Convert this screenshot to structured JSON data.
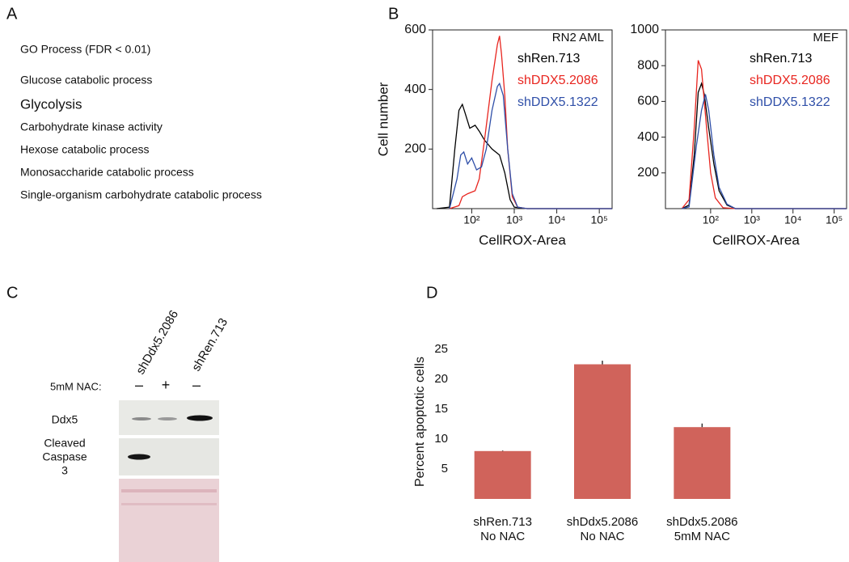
{
  "panels": {
    "a": "A",
    "b": "B",
    "c": "C",
    "d": "D"
  },
  "go_list": {
    "title": "GO Process (FDR < 0.01)",
    "items": [
      "Glucose catabolic process",
      "Glycolysis",
      "Carbohydrate kinase activity",
      "Hexose catabolic process",
      "Monosaccharide catabolic process",
      "Single-organism carbohydrate catabolic  process"
    ]
  },
  "blot": {
    "lanes": [
      "shDdx5.2086",
      "shRen.713"
    ],
    "treatment_label": "5mM NAC:",
    "treatments": [
      "–",
      "+",
      "–"
    ],
    "rows": [
      [
        "Ddx5"
      ],
      [
        "Cleaved",
        "Caspase",
        "3"
      ]
    ]
  },
  "chart_data": [
    {
      "type": "line",
      "title": "RN2 AML",
      "xlabel": "CellROX-Area",
      "ylabel": "Cell number",
      "xscale": "log",
      "legend": "upper right",
      "xlim": [
        12,
        200000
      ],
      "xticks": [
        {
          "value": 100,
          "label": "10²"
        },
        {
          "value": 1000,
          "label": "10³"
        },
        {
          "value": 10000,
          "label": "10⁴"
        },
        {
          "value": 100000,
          "label": "10⁵"
        }
      ],
      "ylim": [
        0,
        600
      ],
      "yticks": [
        200,
        400,
        600
      ],
      "series": [
        {
          "name": "shRen.713",
          "color": "#000000",
          "x": [
            15,
            30,
            40,
            50,
            60,
            70,
            90,
            120,
            150,
            200,
            300,
            450,
            600,
            800,
            1000,
            2000,
            200000
          ],
          "values": [
            0,
            5,
            200,
            330,
            350,
            320,
            270,
            280,
            260,
            230,
            200,
            180,
            120,
            30,
            5,
            0,
            0
          ]
        },
        {
          "name": "shDDX5.2086",
          "color": "#e8251f",
          "x": [
            30,
            50,
            60,
            80,
            120,
            150,
            200,
            300,
            400,
            450,
            500,
            600,
            700,
            900,
            1200,
            2000,
            200000
          ],
          "values": [
            0,
            10,
            40,
            50,
            60,
            100,
            230,
            430,
            550,
            580,
            520,
            380,
            200,
            40,
            5,
            0,
            0
          ]
        },
        {
          "name": "shDDX5.1322",
          "color": "#2f4fa8",
          "x": [
            30,
            45,
            55,
            65,
            80,
            100,
            130,
            170,
            220,
            300,
            400,
            450,
            550,
            700,
            900,
            1200,
            2000,
            200000
          ],
          "values": [
            0,
            100,
            180,
            190,
            150,
            170,
            130,
            140,
            200,
            330,
            410,
            420,
            380,
            200,
            50,
            5,
            0,
            0
          ]
        }
      ]
    },
    {
      "type": "line",
      "title": "MEF",
      "xlabel": "CellROX-Area",
      "xscale": "log",
      "legend": "upper right",
      "xlim": [
        8,
        200000
      ],
      "xticks": [
        {
          "value": 100,
          "label": "10²"
        },
        {
          "value": 1000,
          "label": "10³"
        },
        {
          "value": 10000,
          "label": "10⁴"
        },
        {
          "value": 100000,
          "label": "10⁵"
        }
      ],
      "ylim": [
        0,
        1000
      ],
      "yticks": [
        200,
        400,
        600,
        800,
        1000
      ],
      "series": [
        {
          "name": "shRen.713",
          "color": "#000000",
          "x": [
            20,
            30,
            40,
            50,
            60,
            70,
            90,
            120,
            160,
            250,
            400,
            200000
          ],
          "values": [
            0,
            20,
            300,
            650,
            700,
            640,
            450,
            250,
            100,
            20,
            0,
            0
          ]
        },
        {
          "name": "shDDX5.2086",
          "color": "#e8251f",
          "x": [
            20,
            30,
            40,
            50,
            60,
            80,
            100,
            130,
            200,
            400,
            200000
          ],
          "values": [
            0,
            50,
            450,
            830,
            780,
            450,
            200,
            60,
            5,
            0,
            0
          ]
        },
        {
          "name": "shDDX5.1322",
          "color": "#2f4fa8",
          "x": [
            20,
            30,
            45,
            60,
            75,
            90,
            120,
            160,
            250,
            400,
            200000
          ],
          "values": [
            0,
            10,
            350,
            550,
            640,
            550,
            300,
            120,
            25,
            0,
            0
          ]
        }
      ]
    },
    {
      "type": "bar",
      "ylabel": "Percent apoptotic cells",
      "color": "#d0635b",
      "categories": [
        [
          "shRen.713",
          "No NAC"
        ],
        [
          "shDdx5.2086",
          "No NAC"
        ],
        [
          "shDdx5.2086",
          "5mM NAC"
        ]
      ],
      "values": [
        8,
        22.5,
        12
      ],
      "errors": [
        0.1,
        0.6,
        0.6
      ],
      "ylim": [
        0,
        25
      ],
      "yticks": [
        5,
        10,
        15,
        20,
        25
      ]
    }
  ]
}
